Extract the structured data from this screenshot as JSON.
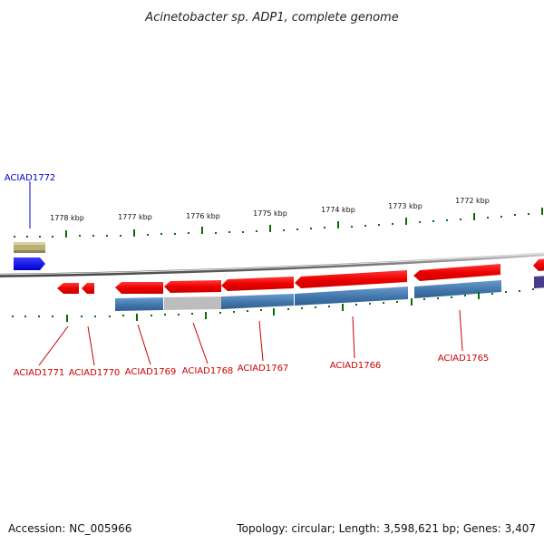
{
  "title": "Acinetobacter sp. ADP1, complete genome",
  "footer": {
    "accession": "Accession: NC_005966",
    "summary": "Topology: circular; Length: 3,598,621 bp; Genes: 3,407"
  },
  "kbp_labels": [
    "1778 kbp",
    "1777 kbp",
    "1776 kbp",
    "1775 kbp",
    "1774 kbp",
    "1773 kbp",
    "1772 kbp"
  ],
  "colors": {
    "label_red": "#cc0000",
    "label_blue": "#0000cc",
    "gene_red": "#ee0000",
    "gene_blue": "#0000ee",
    "gene_olive": "#bbb177",
    "feature_steel": "#4a7fb0",
    "feature_grey": "#bdbdbd",
    "feature_purple": "#4a3a8a",
    "tick_green": "#0a6a0a",
    "backbone": "#888888"
  },
  "genes": [
    {
      "label": "ACIAD1772",
      "color": "label_blue"
    },
    {
      "label": "ACIAD1771",
      "color": "label_red"
    },
    {
      "label": "ACIAD1770",
      "color": "label_red"
    },
    {
      "label": "ACIAD1769",
      "color": "label_red"
    },
    {
      "label": "ACIAD1768",
      "color": "label_red"
    },
    {
      "label": "ACIAD1767",
      "color": "label_red"
    },
    {
      "label": "ACIAD1766",
      "color": "label_red"
    },
    {
      "label": "ACIAD1765",
      "color": "label_red"
    }
  ]
}
